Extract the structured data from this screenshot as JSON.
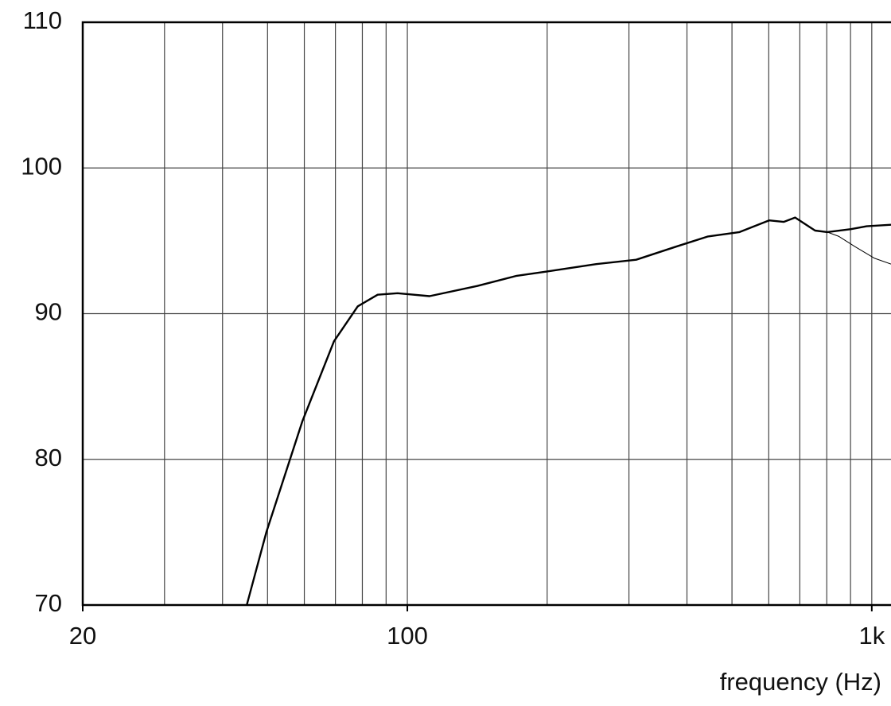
{
  "chart_data": {
    "type": "line",
    "xlabel": "frequency (Hz)",
    "xscale": "log",
    "xlim": [
      20,
      1100
    ],
    "ylim": [
      70,
      110
    ],
    "xticks": [
      20,
      100,
      {
        "value": 1000,
        "label": "1k"
      }
    ],
    "xgrid": [
      30,
      40,
      50,
      60,
      70,
      80,
      90,
      100,
      200,
      300,
      400,
      500,
      600,
      700,
      800,
      900,
      1000
    ],
    "yticks": [
      70,
      80,
      90,
      100,
      110
    ],
    "grid": true,
    "series": [
      {
        "color": "#000000",
        "width": 2.4,
        "x": [
          45.1,
          49.7,
          59.4,
          69.5,
          78.2,
          86.3,
          95.3,
          111.6,
          141.4,
          172,
          200,
          255,
          311,
          379,
          444,
          519,
          601,
          646,
          684,
          755,
          802,
          902,
          975,
          1100
        ],
        "values": [
          70,
          75.0,
          82.6,
          88.1,
          90.5,
          91.3,
          91.4,
          91.2,
          91.9,
          92.6,
          92.9,
          93.4,
          93.7,
          94.6,
          95.3,
          95.6,
          96.4,
          96.3,
          96.6,
          95.7,
          95.6,
          95.8,
          96.0,
          96.1
        ]
      },
      {
        "color": "#000000",
        "width": 1,
        "x": [
          802,
          850,
          920,
          1014,
          1100
        ],
        "values": [
          95.6,
          95.3,
          94.6,
          93.8,
          93.4
        ]
      }
    ]
  }
}
